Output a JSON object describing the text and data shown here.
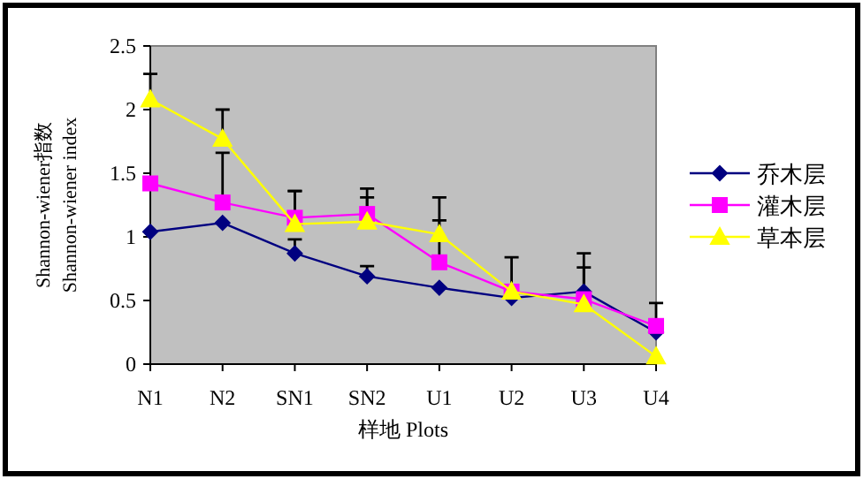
{
  "chart_data": {
    "type": "line",
    "xlabel": "样地 Plots",
    "ylabel": "Shannon-wiener指数\nShannon-wiener index",
    "categories": [
      "N1",
      "N2",
      "SN1",
      "SN2",
      "U1",
      "U2",
      "U3",
      "U4"
    ],
    "ylim": [
      0,
      2.5
    ],
    "yticks": [
      0,
      0.5,
      1,
      1.5,
      2,
      2.5
    ],
    "grid": false,
    "legend": "right",
    "series": [
      {
        "name": "乔木层",
        "color": "#000080",
        "marker": "diamond",
        "values": [
          1.04,
          1.11,
          0.87,
          0.69,
          0.6,
          0.52,
          0.57,
          0.25
        ],
        "errors": [
          null,
          null,
          [
            0.87,
            0.98
          ],
          [
            0.69,
            0.77
          ],
          null,
          null,
          null,
          null
        ]
      },
      {
        "name": "灌木层",
        "color": "#ff00ff",
        "marker": "square",
        "values": [
          1.42,
          1.27,
          1.15,
          1.18,
          0.8,
          0.57,
          0.51,
          0.3
        ],
        "errors": [
          null,
          [
            1.27,
            1.66
          ],
          [
            1.15,
            1.36
          ],
          [
            1.18,
            1.38
          ],
          [
            0.8,
            1.13
          ],
          null,
          [
            0.51,
            0.76
          ],
          [
            0.3,
            0.48
          ]
        ]
      },
      {
        "name": "草本层",
        "color": "#ffff00",
        "marker": "triangle",
        "values": [
          2.08,
          1.77,
          1.1,
          1.12,
          1.02,
          0.57,
          0.47,
          0.06
        ],
        "errors": [
          [
            2.08,
            2.28
          ],
          [
            1.77,
            2.0
          ],
          [
            1.1,
            1.36
          ],
          [
            1.12,
            1.31
          ],
          [
            1.02,
            1.31
          ],
          [
            0.57,
            0.84
          ],
          [
            0.47,
            0.87
          ],
          null
        ]
      }
    ]
  }
}
